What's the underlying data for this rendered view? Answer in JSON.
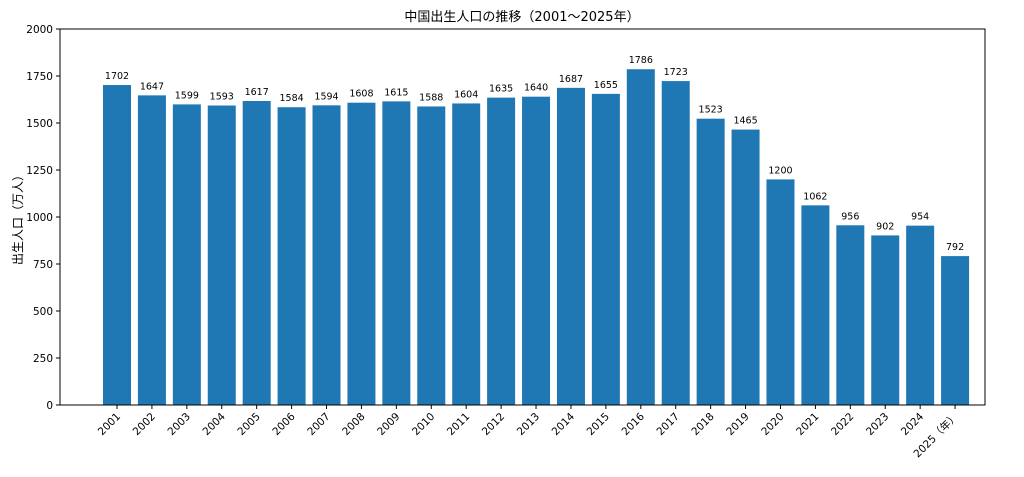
{
  "chart_data": {
    "type": "bar",
    "title": "中国出生人口の推移（2001〜2025年）",
    "xlabel": "",
    "ylabel": "出生人口（万人）",
    "categories": [
      "2001",
      "2002",
      "2003",
      "2004",
      "2005",
      "2006",
      "2007",
      "2008",
      "2009",
      "2010",
      "2011",
      "2012",
      "2013",
      "2014",
      "2015",
      "2016",
      "2017",
      "2018",
      "2019",
      "2020",
      "2021",
      "2022",
      "2023",
      "2024",
      "2025（年）"
    ],
    "values": [
      1702,
      1647,
      1599,
      1593,
      1617,
      1584,
      1594,
      1608,
      1615,
      1588,
      1604,
      1635,
      1640,
      1687,
      1655,
      1786,
      1723,
      1523,
      1465,
      1200,
      1062,
      956,
      902,
      954,
      792
    ],
    "ylim": [
      0,
      2000
    ],
    "yticks": [
      0,
      250,
      500,
      750,
      1000,
      1250,
      1500,
      1750,
      2000
    ],
    "grid": false,
    "bar_color": "#1f77b4"
  }
}
